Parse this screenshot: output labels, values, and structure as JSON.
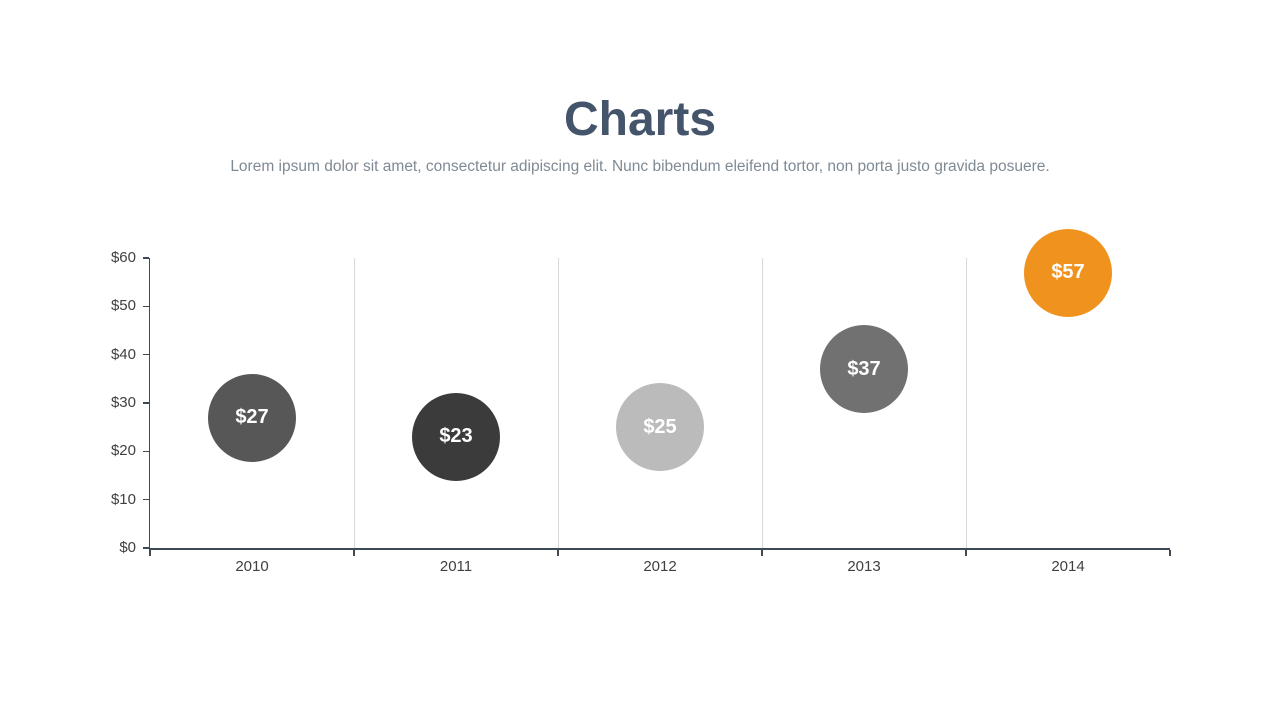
{
  "header": {
    "title": "Charts",
    "subtitle": "Lorem ipsum dolor sit amet, consectetur adipiscing elit. Nunc bibendum eleifend tortor, non porta justo gravida posuere."
  },
  "colors": {
    "title_text": "#44546A",
    "subtitle_text": "#7F8A94",
    "axis_line": "#3E4954",
    "tick_text": "#404040",
    "gridline": "#D9D9D9",
    "bubble_label_text": "#FFFFFF",
    "accent_orange": "#F0921E"
  },
  "chart_data": {
    "type": "scatter",
    "subtype": "bubble",
    "title": "",
    "xlabel": "",
    "ylabel": "",
    "categories": [
      "2010",
      "2011",
      "2012",
      "2013",
      "2014"
    ],
    "values": [
      27,
      23,
      25,
      37,
      57
    ],
    "point_labels": [
      "$27",
      "$23",
      "$25",
      "$37",
      "$57"
    ],
    "point_colors": [
      "#575757",
      "#3B3B3B",
      "#BBBBBB",
      "#717171",
      "#F0921E"
    ],
    "ylim": [
      0,
      60
    ],
    "yticks": [
      0,
      10,
      20,
      30,
      40,
      50,
      60
    ],
    "ytick_labels": [
      "$0",
      "$10",
      "$20",
      "$30",
      "$40",
      "$50",
      "$60"
    ],
    "grid": "vertical-category-separators",
    "legend": "none"
  }
}
